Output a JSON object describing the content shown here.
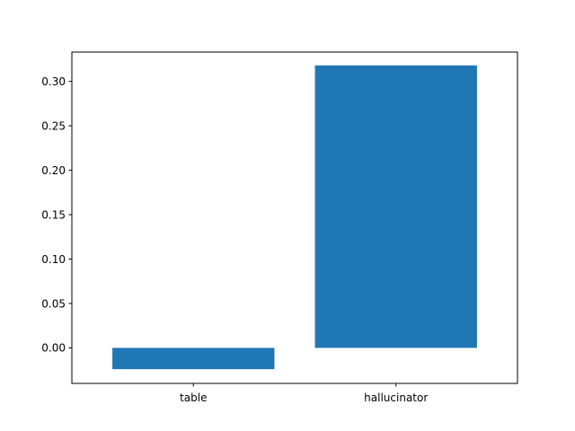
{
  "chart_data": {
    "type": "bar",
    "categories": [
      "table",
      "hallucinator"
    ],
    "values": [
      -0.024,
      0.318
    ],
    "title": "",
    "xlabel": "",
    "ylabel": "",
    "ylim": [
      -0.04,
      0.333
    ],
    "yticks": [
      0.0,
      0.05,
      0.1,
      0.15,
      0.2,
      0.25,
      0.3
    ],
    "ytick_labels": [
      "0.00",
      "0.05",
      "0.10",
      "0.15",
      "0.20",
      "0.25",
      "0.30"
    ],
    "grid": false,
    "legend": "none",
    "bar_color": "#1f77b4"
  }
}
